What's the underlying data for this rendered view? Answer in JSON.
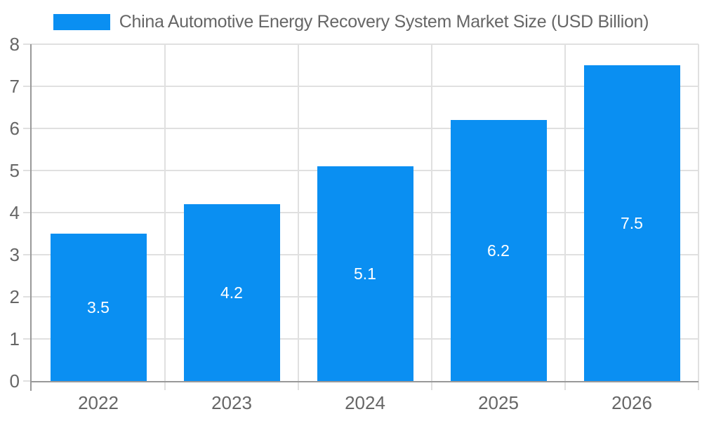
{
  "chart_data": {
    "type": "bar",
    "title": "China Automotive Energy Recovery System Market Size (USD Billion)",
    "categories": [
      "2022",
      "2023",
      "2024",
      "2025",
      "2026"
    ],
    "values": [
      3.5,
      4.2,
      5.1,
      6.2,
      7.5
    ],
    "data_labels": [
      "3.5",
      "4.2",
      "5.1",
      "6.2",
      "7.5"
    ],
    "xlabel": "",
    "ylabel": "",
    "ylim": [
      0,
      8
    ],
    "ytick_interval": 1,
    "ytick_labels": [
      "0",
      "1",
      "2",
      "3",
      "4",
      "5",
      "6",
      "7",
      "8"
    ],
    "grid": true,
    "legend_position": "top-center",
    "colors": {
      "bar": "#0A8FF2",
      "grid": "#E0E0E0",
      "axis": "#999999",
      "text": "#666666",
      "data_label": "#FFFFFF"
    }
  }
}
